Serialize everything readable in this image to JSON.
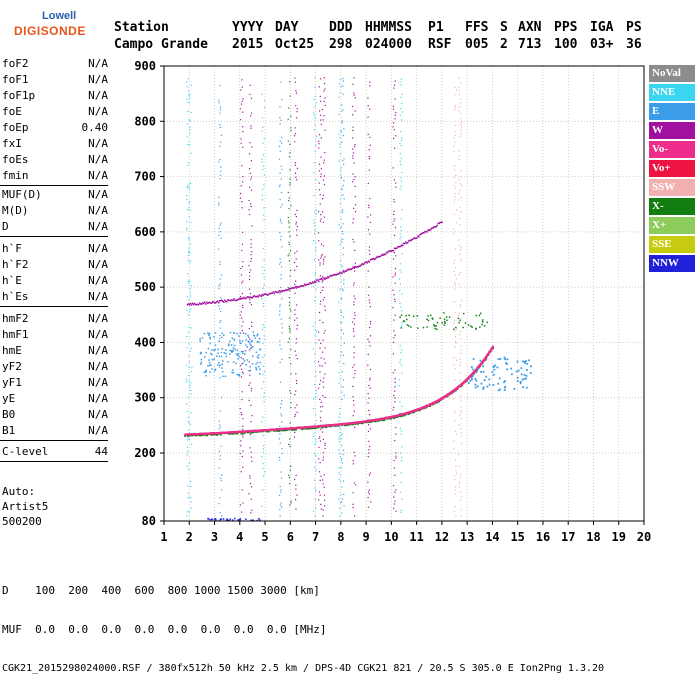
{
  "logo": {
    "line1": "Lowell",
    "line2": "DIGISONDE"
  },
  "header": {
    "labels": [
      "Station",
      "YYYY",
      "DAY",
      "DDD",
      "HHMMSS",
      "P1",
      "FFS",
      "S",
      "AXN",
      "PPS",
      "IGA",
      "PS"
    ],
    "values": [
      "Campo Grande",
      "2015",
      "Oct25",
      "298",
      "024000",
      "RSF",
      "005",
      "2",
      "713",
      "100",
      "03+",
      "36"
    ]
  },
  "params": {
    "group1": [
      {
        "name": "foF2",
        "value": "N/A"
      },
      {
        "name": "foF1",
        "value": "N/A"
      },
      {
        "name": "foF1p",
        "value": "N/A"
      },
      {
        "name": "foE",
        "value": "N/A"
      },
      {
        "name": "foEp",
        "value": "0.40"
      },
      {
        "name": "fxI",
        "value": "N/A"
      },
      {
        "name": "foEs",
        "value": "N/A"
      },
      {
        "name": "fmin",
        "value": "N/A"
      }
    ],
    "group2": [
      {
        "name": "MUF(D)",
        "value": "N/A"
      },
      {
        "name": "M(D)",
        "value": "N/A"
      },
      {
        "name": "D",
        "value": "N/A"
      }
    ],
    "group3": [
      {
        "name": "h`F",
        "value": "N/A"
      },
      {
        "name": "h`F2",
        "value": "N/A"
      },
      {
        "name": "h`E",
        "value": "N/A"
      },
      {
        "name": "h`Es",
        "value": "N/A"
      }
    ],
    "group4": [
      {
        "name": "hmF2",
        "value": "N/A"
      },
      {
        "name": "hmF1",
        "value": "N/A"
      },
      {
        "name": "hmE",
        "value": "N/A"
      },
      {
        "name": "yF2",
        "value": "N/A"
      },
      {
        "name": "yF1",
        "value": "N/A"
      },
      {
        "name": "yE",
        "value": "N/A"
      },
      {
        "name": "B0",
        "value": "N/A"
      },
      {
        "name": "B1",
        "value": "N/A"
      }
    ],
    "group5": [
      {
        "name": "C-level",
        "value": "44"
      }
    ]
  },
  "auto": {
    "line1": "Auto:",
    "line2": "Artist5",
    "line3": "500200"
  },
  "axes": {
    "x_ticks": [
      "1",
      "2",
      "3",
      "4",
      "5",
      "6",
      "7",
      "8",
      "9",
      "10",
      "11",
      "12",
      "13",
      "14",
      "15",
      "16",
      "17",
      "18",
      "19",
      "20"
    ],
    "y_ticks": [
      "80",
      "200",
      "300",
      "400",
      "500",
      "600",
      "700",
      "800",
      "900"
    ]
  },
  "legend": [
    {
      "label": "NoVal",
      "color": "#8c8c8c"
    },
    {
      "label": "NNE",
      "color": "#3ad6f0"
    },
    {
      "label": "E",
      "color": "#3b9de8"
    },
    {
      "label": "W",
      "color": "#a1109e"
    },
    {
      "label": "Vo-",
      "color": "#ee2c8c"
    },
    {
      "label": "Vo+",
      "color": "#ee1442"
    },
    {
      "label": "SSW",
      "color": "#f2b0b0"
    },
    {
      "label": "X-",
      "color": "#127e12"
    },
    {
      "label": "X+",
      "color": "#8ccc5a"
    },
    {
      "label": "SSE",
      "color": "#c8cc10"
    },
    {
      "label": "NNW",
      "color": "#2020d8"
    }
  ],
  "bottom": {
    "line1": "D    100  200  400  600  800 1000 1500 3000 [km]",
    "line2": "MUF  0.0  0.0  0.0  0.0  0.0  0.0  0.0  0.0 [MHz]",
    "footer": "CGK21_2015298024000.RSF / 380fx512h 50 kHz 2.5 km / DPS-4D CGK21 821 / 20.5 S 305.0 E Ion2Png 1.3.20"
  }
}
